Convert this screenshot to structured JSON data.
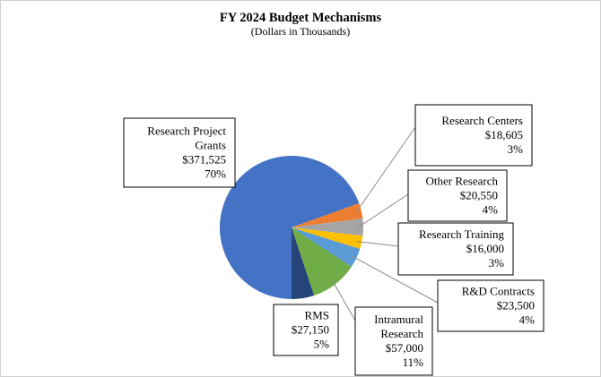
{
  "chart_data": {
    "type": "pie",
    "title": "FY 2024 Budget Mechanisms",
    "subtitle": "(Dollars in Thousands)",
    "slices": [
      {
        "lines": [
          "Research Project",
          "Grants"
        ],
        "value_label": "$371,525",
        "percent_label": "70%",
        "value": 371525,
        "color": "#4472C4"
      },
      {
        "lines": [
          "Research Centers"
        ],
        "value_label": "$18,605",
        "percent_label": "3%",
        "value": 18605,
        "color": "#ED7D31"
      },
      {
        "lines": [
          "Other Research"
        ],
        "value_label": "$20,550",
        "percent_label": "4%",
        "value": 20550,
        "color": "#A5A5A5"
      },
      {
        "lines": [
          "Research Training"
        ],
        "value_label": "$16,000",
        "percent_label": "3%",
        "value": 16000,
        "color": "#FFC000"
      },
      {
        "lines": [
          "R&D Contracts"
        ],
        "value_label": "$23,500",
        "percent_label": "4%",
        "value": 23500,
        "color": "#5B9BD5"
      },
      {
        "lines": [
          "Intramural",
          "Research"
        ],
        "value_label": "$57,000",
        "percent_label": "11%",
        "value": 57000,
        "color": "#70AD47"
      },
      {
        "lines": [
          "RMS"
        ],
        "value_label": "$27,150",
        "percent_label": "5%",
        "value": 27150,
        "color": "#264478"
      }
    ]
  }
}
